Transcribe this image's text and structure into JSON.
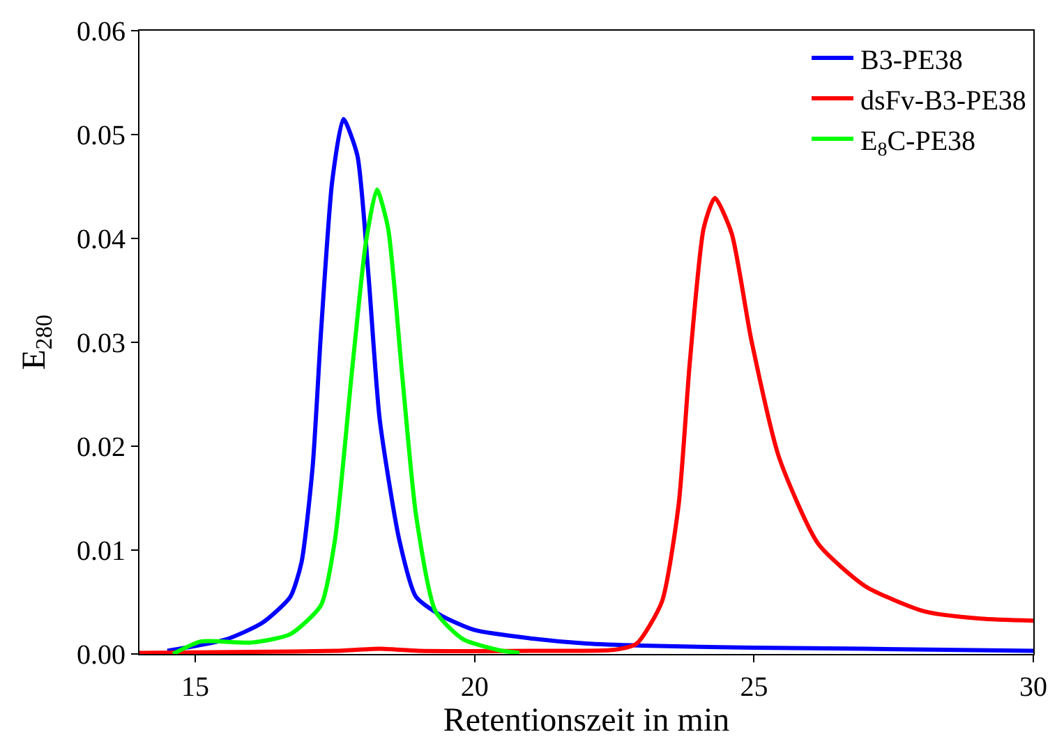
{
  "chart_data": {
    "type": "line",
    "xlabel": "Retentionszeit in min",
    "ylabel": "E$_{280}$",
    "xlim": [
      14,
      30
    ],
    "xticks": [
      15,
      20,
      25,
      30
    ],
    "ylim": [
      0,
      0.06
    ],
    "yticks": [
      {
        "value": 0,
        "label": "0.00"
      },
      {
        "value": 0.01,
        "label": "0.01"
      },
      {
        "value": 0.02,
        "label": "0.02"
      },
      {
        "value": 0.03,
        "label": "0.03"
      },
      {
        "value": 0.04,
        "label": "0.04"
      },
      {
        "value": 0.05,
        "label": "0.05"
      },
      {
        "value": 0.06,
        "label": "0.06"
      }
    ],
    "legend": "top right",
    "marker": "none",
    "line_style": "solid",
    "series": [
      {
        "name": "B3-PE38",
        "color": "#0000ff",
        "x": [
          14.5,
          15.55,
          16.2,
          16.7,
          16.9,
          17.1,
          17.25,
          17.45,
          17.65,
          17.9,
          18.1,
          18.3,
          18.65,
          18.95,
          19.4,
          20,
          21,
          22,
          23,
          25,
          27,
          30
        ],
        "values": [
          0.0003,
          0.0014,
          0.003,
          0.0055,
          0.0088,
          0.018,
          0.031,
          0.0455,
          0.0515,
          0.048,
          0.0364,
          0.0226,
          0.011,
          0.0055,
          0.0037,
          0.0023,
          0.0015,
          0.001,
          0.0008,
          0.0006,
          0.0005,
          0.0003
        ]
      },
      {
        "name": "dsFv-B3-PE38",
        "color": "#ff0000",
        "x": [
          14,
          16,
          17.5,
          18.3,
          19,
          21,
          22.5,
          22.9,
          23.35,
          23.65,
          23.85,
          24.1,
          24.3,
          24.6,
          24.95,
          25.45,
          26.15,
          27.0,
          28.05,
          29.05,
          30
        ],
        "values": [
          0.0001,
          0.0002,
          0.0003,
          0.0005,
          0.0003,
          0.0003,
          0.0004,
          0.001,
          0.005,
          0.0143,
          0.028,
          0.041,
          0.0439,
          0.0405,
          0.0303,
          0.0189,
          0.0106,
          0.0065,
          0.0041,
          0.0034,
          0.0032
        ]
      },
      {
        "name": "E$_{8}$C-PE38",
        "color": "#00ff00",
        "x": [
          14.6,
          15.1,
          16.0,
          16.7,
          17.25,
          17.5,
          17.8,
          18.05,
          18.25,
          18.45,
          18.7,
          18.95,
          19.3,
          19.8,
          20.5,
          20.8
        ],
        "values": [
          0.0,
          0.0012,
          0.0011,
          0.0019,
          0.0047,
          0.011,
          0.027,
          0.0395,
          0.0447,
          0.041,
          0.027,
          0.0134,
          0.0041,
          0.0014,
          0.0003,
          0.0001
        ]
      }
    ]
  }
}
